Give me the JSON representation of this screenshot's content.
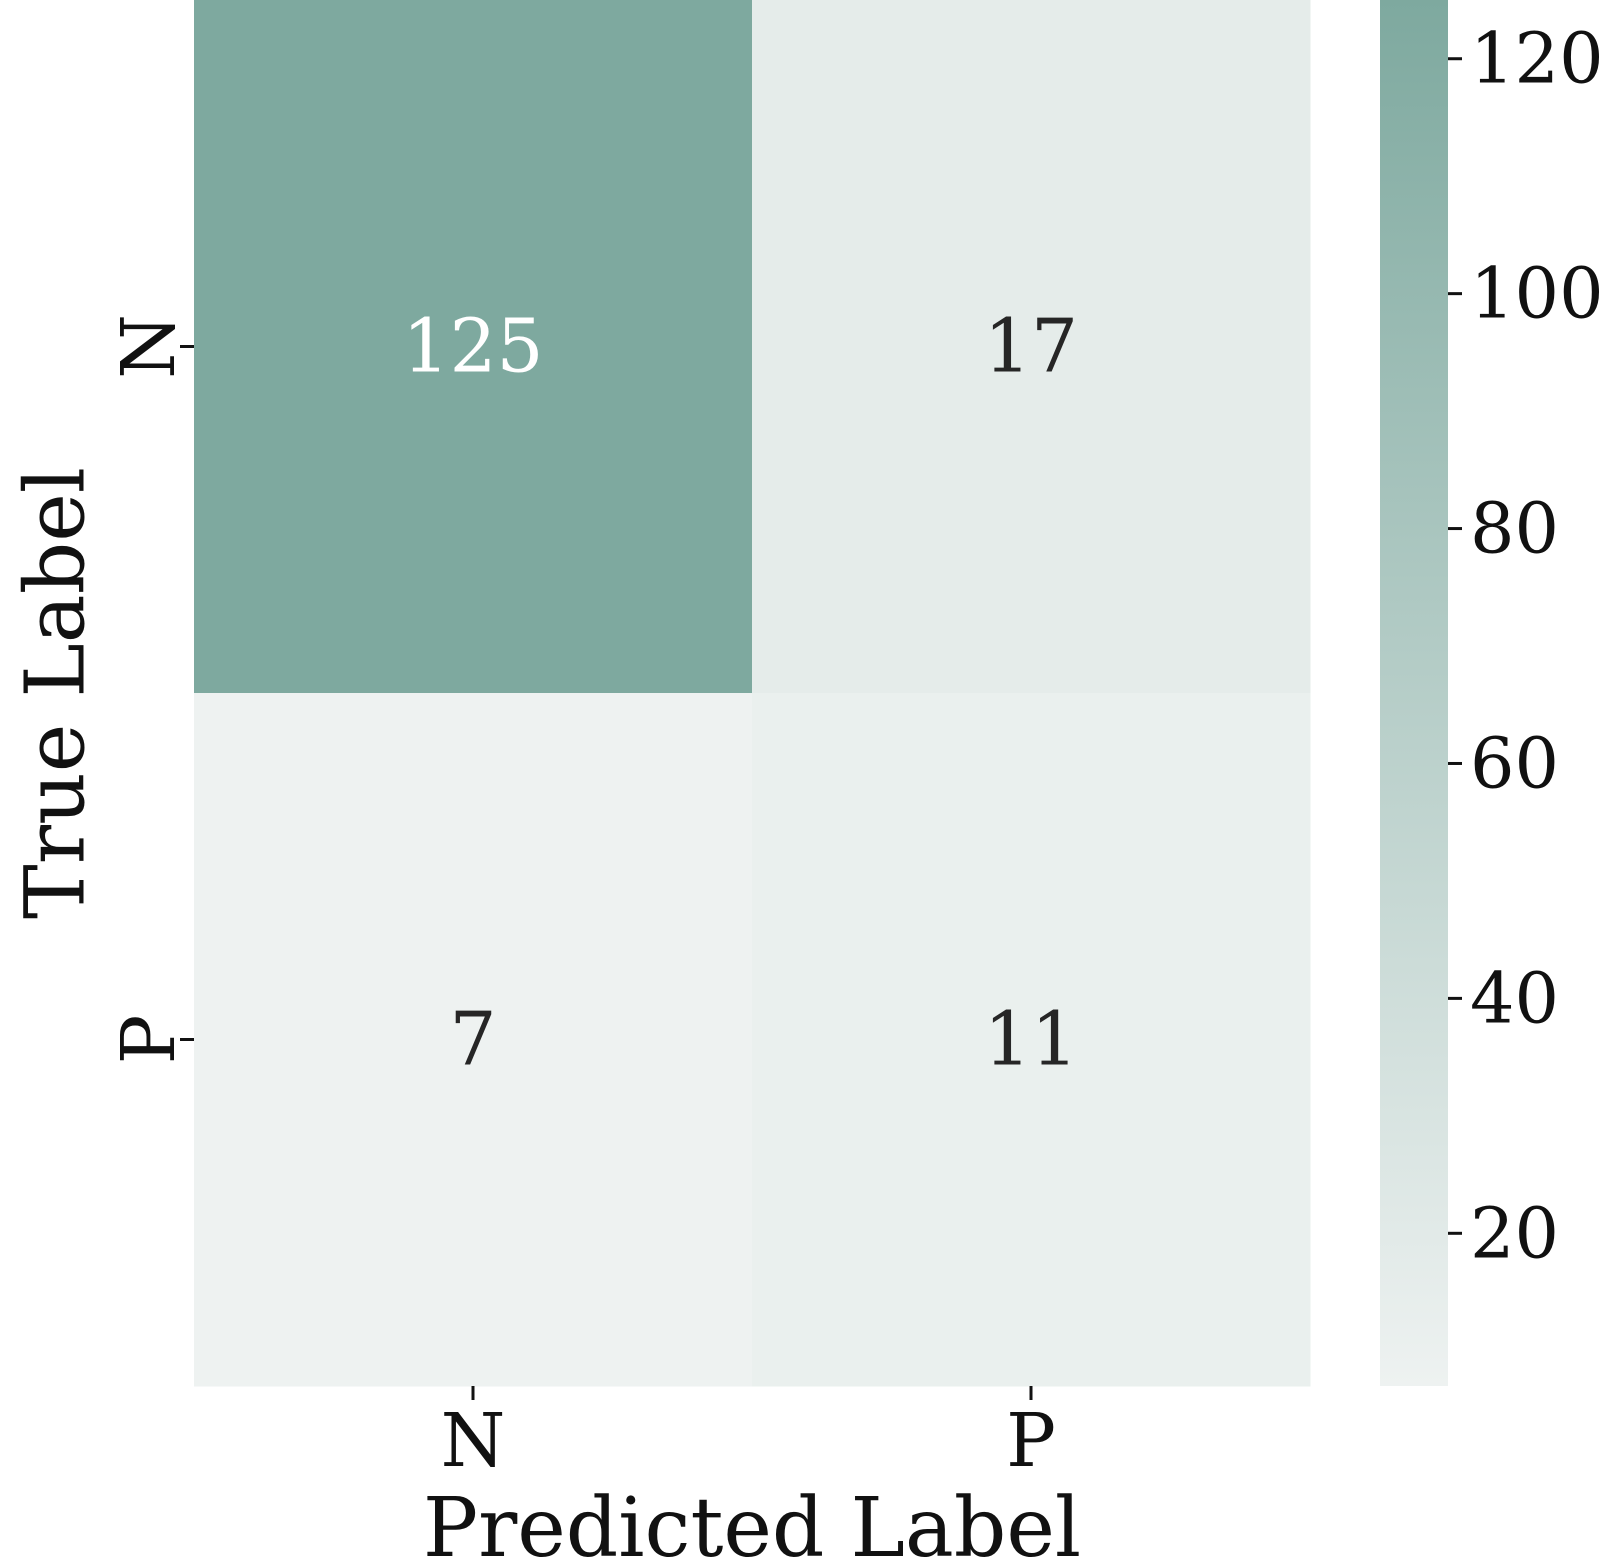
{
  "chart_data": {
    "type": "heatmap",
    "title": "",
    "xlabel": "Predicted Label",
    "ylabel": "True Label",
    "x_categories": [
      "N",
      "P"
    ],
    "y_categories": [
      "N",
      "P"
    ],
    "values": [
      [
        125,
        17
      ],
      [
        7,
        11
      ]
    ],
    "colorbar": {
      "min": 7,
      "max": 125,
      "ticks": [
        20,
        40,
        60,
        80,
        100,
        120
      ],
      "color_low": "#eef2f1",
      "color_high": "#7ea99f"
    },
    "annotation_color_dark_cell": "#ffffff",
    "annotation_color_light_cell": "#262626",
    "grid": false,
    "legend": "colorbar-right"
  }
}
